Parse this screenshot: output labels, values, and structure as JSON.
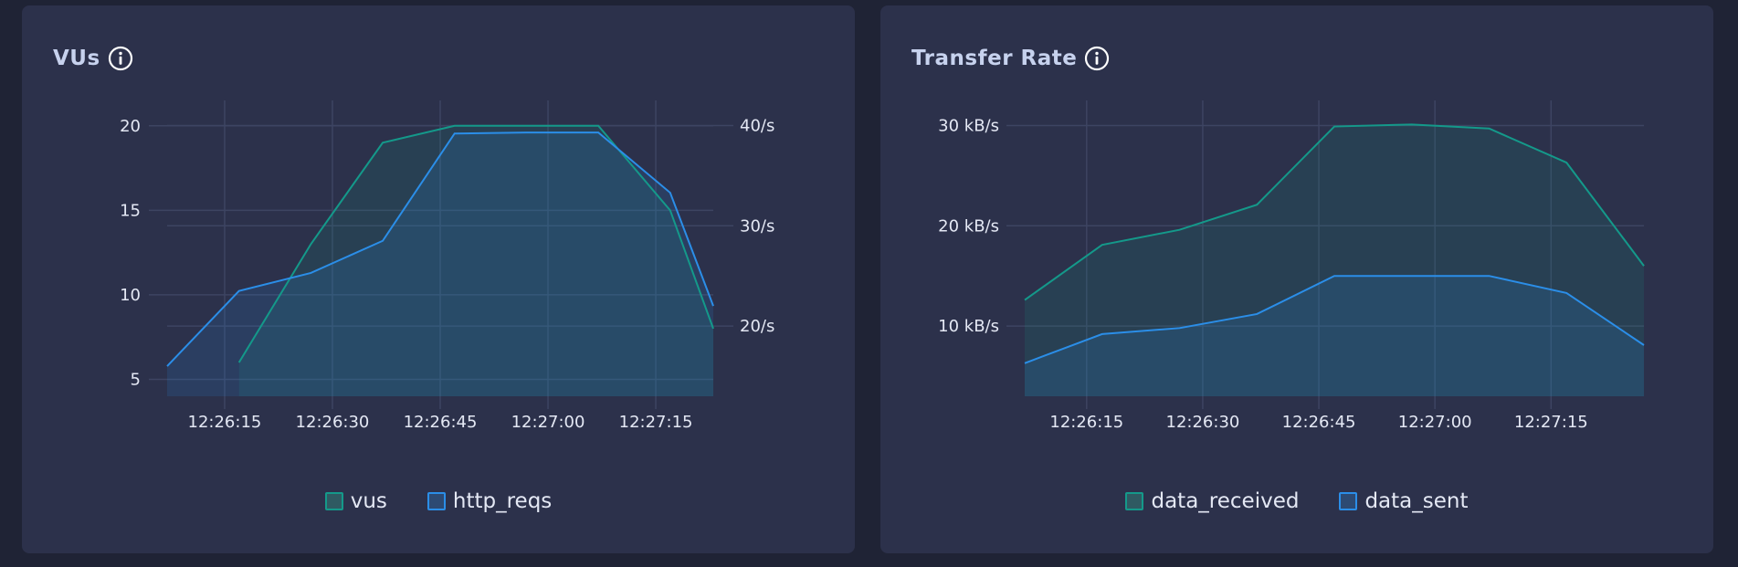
{
  "colors": {
    "teal": "#14998a",
    "blue": "#2b8ee8",
    "grid": "#3d4462"
  },
  "panels": [
    {
      "title": "VUs",
      "info_icon": "info-icon",
      "legend": [
        {
          "label": "vus",
          "color": "#14998a"
        },
        {
          "label": "http_reqs",
          "color": "#2b8ee8"
        }
      ]
    },
    {
      "title": "Transfer Rate",
      "info_icon": "info-icon",
      "legend": [
        {
          "label": "data_received",
          "color": "#14998a"
        },
        {
          "label": "data_sent",
          "color": "#2b8ee8"
        }
      ]
    }
  ],
  "chart_data": [
    {
      "type": "area",
      "title": "VUs",
      "x_ticks": [
        "12:26:15",
        "12:26:30",
        "12:26:45",
        "12:27:00",
        "12:27:15"
      ],
      "x_tick_seconds": [
        15,
        30,
        45,
        60,
        75
      ],
      "xlim": [
        7,
        83
      ],
      "y_left": {
        "ticks": [
          5,
          10,
          15,
          20
        ],
        "tick_labels": [
          "5",
          "10",
          "15",
          "20"
        ],
        "lim": [
          4,
          21.5
        ]
      },
      "y_right": {
        "ticks": [
          20,
          30,
          40
        ],
        "tick_labels": [
          "20/s",
          "30/s",
          "40/s"
        ],
        "lim": [
          13,
          42.5
        ]
      },
      "grid": true,
      "legend_position": "bottom-center",
      "series": [
        {
          "name": "vus",
          "axis": "left",
          "color": "#14998a",
          "x": [
            17,
            27,
            37,
            47,
            57,
            67,
            77,
            83
          ],
          "y": [
            6,
            13,
            19,
            20,
            20,
            20,
            15,
            8
          ]
        },
        {
          "name": "http_reqs",
          "axis": "right",
          "color": "#2b8ee8",
          "x": [
            7,
            17,
            27,
            37,
            47,
            57,
            67,
            77,
            83
          ],
          "y": [
            16,
            23.5,
            25.3,
            28.5,
            39.2,
            39.3,
            39.3,
            33.3,
            22
          ]
        }
      ]
    },
    {
      "type": "area",
      "title": "Transfer Rate",
      "x_ticks": [
        "12:26:15",
        "12:26:30",
        "12:26:45",
        "12:27:00",
        "12:27:15"
      ],
      "x_tick_seconds": [
        15,
        30,
        45,
        60,
        75
      ],
      "xlim": [
        7,
        87
      ],
      "y_left": {
        "ticks": [
          10,
          20,
          30
        ],
        "tick_labels": [
          "10 kB/s",
          "20 kB/s",
          "30 kB/s"
        ],
        "lim": [
          3,
          32.5
        ]
      },
      "grid": true,
      "legend_position": "bottom-center",
      "series": [
        {
          "name": "data_received",
          "axis": "left",
          "color": "#14998a",
          "x": [
            7,
            17,
            27,
            37,
            47,
            57,
            67,
            77,
            87
          ],
          "y": [
            12.6,
            18.1,
            19.6,
            22.1,
            29.9,
            30.1,
            29.7,
            26.3,
            16
          ]
        },
        {
          "name": "data_sent",
          "axis": "left",
          "color": "#2b8ee8",
          "x": [
            7,
            17,
            27,
            37,
            47,
            57,
            67,
            77,
            87
          ],
          "y": [
            6.3,
            9.2,
            9.8,
            11.2,
            15,
            15,
            15,
            13.3,
            8.1
          ]
        }
      ]
    }
  ]
}
